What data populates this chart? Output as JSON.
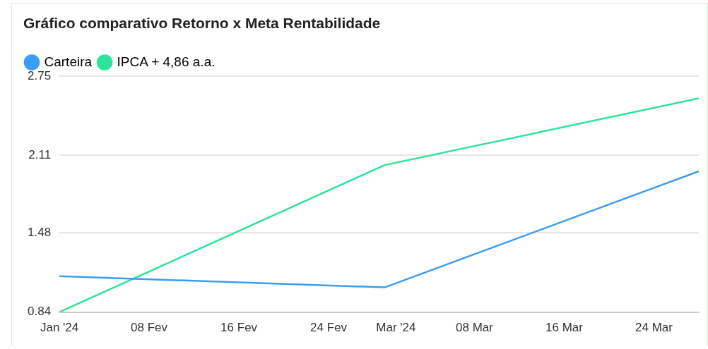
{
  "chart_data": {
    "type": "line",
    "title": "Gráfico comparativo Retorno x Meta Rentabilidade",
    "x": [
      "2024-01-31",
      "2024-02-29",
      "2024-03-28"
    ],
    "series": [
      {
        "name": "Carteira",
        "color": "#3a9cf5",
        "values": [
          1.13,
          1.04,
          1.98
        ]
      },
      {
        "name": "IPCA + 4,86 a.a.",
        "color": "#2ee39a",
        "values": [
          0.84,
          2.03,
          2.57
        ]
      }
    ],
    "xlim": [
      "2024-01-31",
      "2024-03-28"
    ],
    "xticks": [
      {
        "value": "2024-01-31",
        "label": "Jan '24"
      },
      {
        "value": "2024-02-08",
        "label": "08 Fev"
      },
      {
        "value": "2024-02-16",
        "label": "16 Fev"
      },
      {
        "value": "2024-02-24",
        "label": "24 Fev"
      },
      {
        "value": "2024-03-01",
        "label": "Mar '24"
      },
      {
        "value": "2024-03-08",
        "label": "08 Mar"
      },
      {
        "value": "2024-03-16",
        "label": "16 Mar"
      },
      {
        "value": "2024-03-24",
        "label": "24 Mar"
      }
    ],
    "ylim": [
      0.84,
      2.75
    ],
    "yticks": [
      0.84,
      1.48,
      2.11,
      2.75
    ],
    "grid": "y",
    "legend": "top left",
    "marker": "none",
    "line_style": "solid"
  }
}
